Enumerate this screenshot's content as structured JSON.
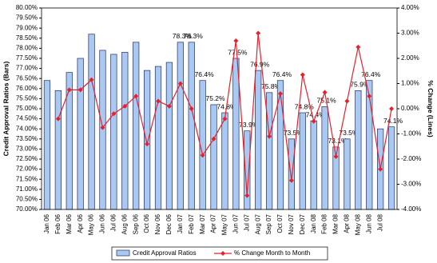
{
  "chart_data": {
    "type": "bar-line",
    "y_label": "Credit Approval Ratios (Bars)",
    "y2_label": "% Change (Lines)",
    "categories": [
      "Jan 06",
      "Feb 06",
      "Mar 06",
      "Apr 06",
      "May 06",
      "Jun 06",
      "Jul 06",
      "Aug 06",
      "Sep 06",
      "Oct 06",
      "Nov 06",
      "Dec 06",
      "Jan 07",
      "Feb 07",
      "Mar 07",
      "Apr 07",
      "May 07",
      "Jun 07",
      "Jul 07",
      "Aug 07",
      "Sep 07",
      "Oct 07",
      "Nov 07",
      "Dec 07",
      "Jan 08",
      "Feb 08",
      "Mar 08",
      "Apr 08",
      "May 08",
      "Jun 08",
      "Jul 08",
      null
    ],
    "series": [
      {
        "name": "Credit Approval Ratios",
        "type": "bar",
        "color": "#a9c9f2",
        "values": [
          76.4,
          75.9,
          76.8,
          77.5,
          78.7,
          77.9,
          77.7,
          77.8,
          78.3,
          76.9,
          77.1,
          77.3,
          78.3,
          78.3,
          76.4,
          75.2,
          74.8,
          77.5,
          73.9,
          76.9,
          75.8,
          76.4,
          73.5,
          74.8,
          74.4,
          75.1,
          73.1,
          73.5,
          75.9,
          76.4,
          74.0,
          74.1
        ],
        "value_labels": [
          null,
          null,
          null,
          null,
          null,
          null,
          null,
          null,
          null,
          null,
          null,
          null,
          "78.3%",
          "78.3%",
          "76.4%",
          "75.2%",
          "74.8%",
          "77.5%",
          "73.9%",
          "76.9%",
          "75.8%",
          "76.4%",
          "73.5%",
          "74.8%",
          "74.4%",
          "75.1%",
          "73.1%",
          "73.5%",
          "75.9%",
          "76.4%",
          null,
          "74.1%"
        ]
      },
      {
        "name": "% Change Month to Month",
        "type": "line",
        "axis": "y2",
        "color": "#e8202a",
        "values": [
          null,
          -0.4,
          0.75,
          0.75,
          1.15,
          -0.75,
          -0.2,
          0.1,
          0.5,
          -1.4,
          0.3,
          0.1,
          1.0,
          0.0,
          -1.85,
          -1.2,
          -0.4,
          2.7,
          -3.45,
          3.0,
          -1.1,
          0.6,
          -2.85,
          1.35,
          -0.5,
          0.65,
          -1.9,
          0.3,
          2.45,
          0.5,
          -2.4,
          0.0
        ]
      }
    ],
    "ylim": [
      70,
      80
    ],
    "yticks": [
      {
        "value": 70,
        "label": "70.00%"
      },
      {
        "value": 70.5,
        "label": "70.50%"
      },
      {
        "value": 71,
        "label": "71.00%"
      },
      {
        "value": 71.5,
        "label": "71.50%"
      },
      {
        "value": 72,
        "label": "72.00%"
      },
      {
        "value": 72.5,
        "label": "72.50%"
      },
      {
        "value": 73,
        "label": "73.00%"
      },
      {
        "value": 73.5,
        "label": "73.50%"
      },
      {
        "value": 74,
        "label": "74.00%"
      },
      {
        "value": 74.5,
        "label": "74.50%"
      },
      {
        "value": 75,
        "label": "75.00%"
      },
      {
        "value": 75.5,
        "label": "75.50%"
      },
      {
        "value": 76,
        "label": "76.00%"
      },
      {
        "value": 76.5,
        "label": "76.50%"
      },
      {
        "value": 77,
        "label": "77.00%"
      },
      {
        "value": 77.5,
        "label": "77.50%"
      },
      {
        "value": 78,
        "label": "78.00%"
      },
      {
        "value": 78.5,
        "label": "78.50%"
      },
      {
        "value": 79,
        "label": "79.00%"
      },
      {
        "value": 79.5,
        "label": "79.50%"
      },
      {
        "value": 80,
        "label": "80.00%"
      }
    ],
    "y2lim": [
      -4,
      4
    ],
    "y2ticks": [
      {
        "value": -4,
        "label": "-4.00%"
      },
      {
        "value": -3,
        "label": "-3.00%"
      },
      {
        "value": -2,
        "label": "-2.00%"
      },
      {
        "value": -1,
        "label": "-1.00%"
      },
      {
        "value": 0,
        "label": "0.00%"
      },
      {
        "value": 1,
        "label": "1.00%"
      },
      {
        "value": 2,
        "label": "2.00%"
      },
      {
        "value": 3,
        "label": "3.00%"
      },
      {
        "value": 4,
        "label": "4.00%"
      }
    ],
    "legend": "bottom"
  }
}
